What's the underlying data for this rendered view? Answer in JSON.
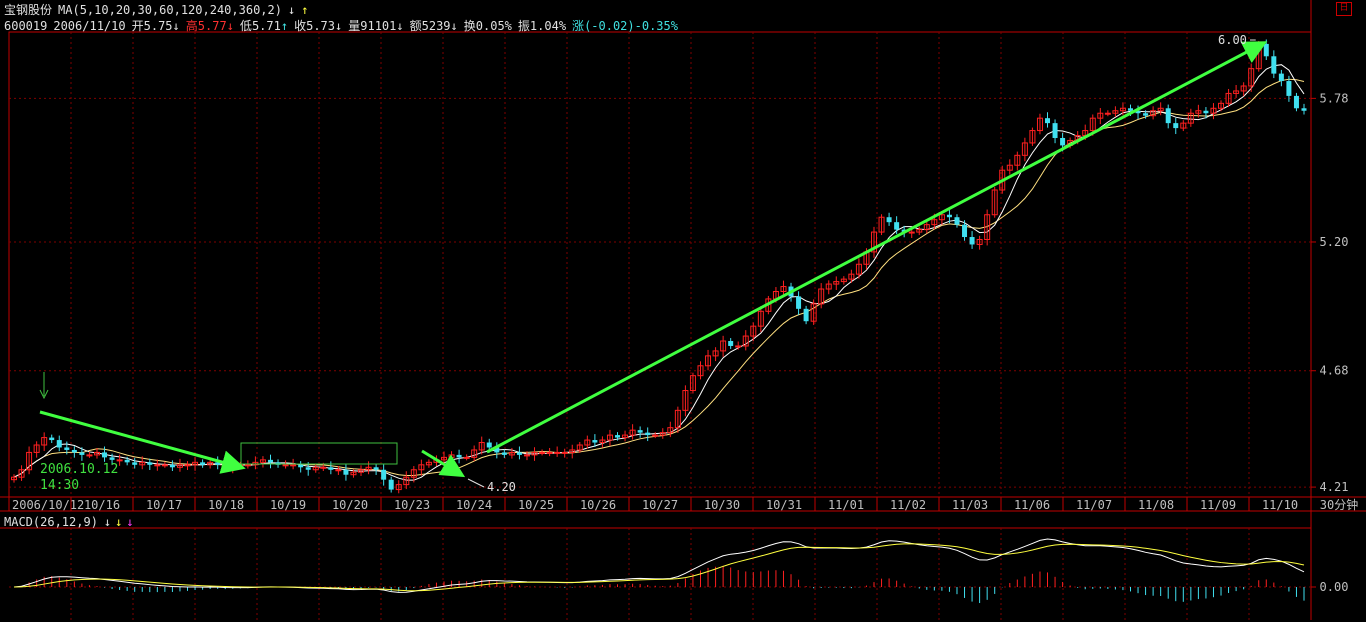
{
  "header": {
    "stock_name": "宝钢股份",
    "ma_spec": "MA(5,10,20,30,60,120,240,360,2)",
    "code": "600019",
    "date": "2006/11/10",
    "open_label": "开",
    "open_value": "5.75",
    "high_label": "高",
    "high_value": "5.77",
    "low_label": "低",
    "low_value": "5.71",
    "close_label": "收",
    "close_value": "5.73",
    "volume_label": "量",
    "volume_value": "91101",
    "amount_label": "额",
    "amount_value": "5239",
    "turnover_label": "换",
    "turnover_value": "0.05%",
    "amplitude_label": "振",
    "amplitude_value": "1.04%",
    "change_label": "涨",
    "change_value": "(-0.02)-0.35%"
  },
  "corner_icon": "restore-window-icon",
  "corner_glyph": "日",
  "macd_header": {
    "label": "MACD(26,12,9)"
  },
  "period_label": "30分钟",
  "colors": {
    "up": "#ff2020",
    "down": "#40e0f0",
    "ma": "#ffffff",
    "grid": "#800000",
    "arrow": "#40ff40",
    "axis": "#c00000"
  },
  "chart_data": [
    {
      "type": "candlestick",
      "price_axis": {
        "ticks": [
          4.21,
          4.68,
          5.2,
          5.78
        ],
        "tick_labels": [
          "4.21",
          "4.68",
          "5.20",
          "5.78"
        ],
        "range": [
          4.17,
          6.04
        ]
      },
      "x_labels": [
        "2006/10/12",
        "10/16",
        "10/17",
        "10/18",
        "10/19",
        "10/20",
        "10/23",
        "10/24",
        "10/25",
        "10/26",
        "10/27",
        "10/30",
        "10/31",
        "11/01",
        "11/02",
        "11/03",
        "11/06",
        "11/07",
        "11/08",
        "11/09",
        "11/10"
      ],
      "close": [
        4.25,
        4.28,
        4.35,
        4.38,
        4.41,
        4.4,
        4.37,
        4.36,
        4.35,
        4.34,
        4.34,
        4.35,
        4.33,
        4.32,
        4.32,
        4.31,
        4.3,
        4.31,
        4.3,
        4.3,
        4.3,
        4.29,
        4.3,
        4.3,
        4.31,
        4.3,
        4.31,
        4.3,
        4.29,
        4.3,
        4.3,
        4.3,
        4.31,
        4.32,
        4.31,
        4.3,
        4.3,
        4.3,
        4.29,
        4.28,
        4.29,
        4.29,
        4.28,
        4.28,
        4.26,
        4.27,
        4.28,
        4.29,
        4.28,
        4.24,
        4.2,
        4.22,
        4.25,
        4.28,
        4.3,
        4.31,
        4.32,
        4.33,
        4.34,
        4.33,
        4.33,
        4.36,
        4.39,
        4.37,
        4.35,
        4.34,
        4.35,
        4.34,
        4.34,
        4.35,
        4.35,
        4.35,
        4.35,
        4.35,
        4.36,
        4.38,
        4.4,
        4.39,
        4.4,
        4.42,
        4.41,
        4.42,
        4.44,
        4.43,
        4.42,
        4.42,
        4.43,
        4.45,
        4.52,
        4.6,
        4.66,
        4.7,
        4.74,
        4.76,
        4.8,
        4.78,
        4.78,
        4.82,
        4.86,
        4.92,
        4.97,
        5.0,
        5.02,
        4.98,
        4.93,
        4.88,
        4.95,
        5.01,
        5.03,
        5.04,
        5.05,
        5.07,
        5.11,
        5.16,
        5.24,
        5.3,
        5.28,
        5.25,
        5.24,
        5.24,
        5.25,
        5.27,
        5.29,
        5.31,
        5.3,
        5.27,
        5.22,
        5.19,
        5.21,
        5.31,
        5.41,
        5.49,
        5.51,
        5.55,
        5.6,
        5.65,
        5.7,
        5.68,
        5.62,
        5.59,
        5.61,
        5.63,
        5.65,
        5.7,
        5.72,
        5.72,
        5.73,
        5.74,
        5.73,
        5.72,
        5.71,
        5.73,
        5.74,
        5.68,
        5.66,
        5.68,
        5.72,
        5.73,
        5.72,
        5.74,
        5.76,
        5.8,
        5.81,
        5.83,
        5.9,
        6.0,
        5.95,
        5.88,
        5.85,
        5.79,
        5.74,
        5.73
      ],
      "annotations": [
        {
          "text": "6.00",
          "value": 6.0
        },
        {
          "text": "4.20",
          "value": 4.2
        },
        {
          "text": "2006.10.12",
          "value": 4.25
        },
        {
          "text": "14:30",
          "value": 4.25
        }
      ]
    },
    {
      "type": "macd",
      "zero_label": "0.00"
    }
  ]
}
